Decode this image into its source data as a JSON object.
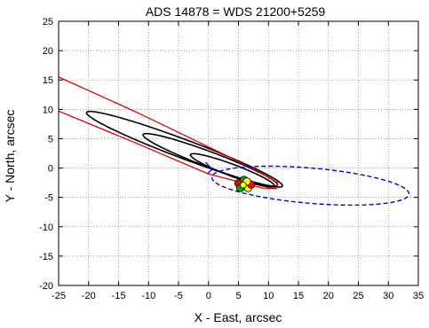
{
  "chart_data": {
    "type": "line",
    "title": "ADS 14878 = WDS 21200+5259",
    "xlabel": "X - East, arcsec",
    "ylabel": "Y - North, arcsec",
    "xlim": [
      -25,
      35
    ],
    "ylim": [
      -20,
      25
    ],
    "x_ticks": [
      -25,
      -20,
      -15,
      -10,
      -5,
      0,
      5,
      10,
      15,
      20,
      25,
      30,
      35
    ],
    "y_ticks": [
      -20,
      -15,
      -10,
      -5,
      0,
      5,
      10,
      15,
      20,
      25
    ],
    "grid": true,
    "legend": "none",
    "center_star": {
      "x": 5.8,
      "y": -2.9
    },
    "series": [
      {
        "style": "solid-black",
        "type": "ellipse",
        "center": [
          -4.0,
          3.2
        ],
        "semi_axes": [
          17.5,
          1.6
        ],
        "angle_deg": -21,
        "color": "#000000"
      },
      {
        "style": "solid-black",
        "type": "ellipse",
        "center": [
          0.3,
          1.4
        ],
        "semi_axes": [
          12.0,
          1.3
        ],
        "angle_deg": -21,
        "color": "#000000"
      },
      {
        "style": "solid-black",
        "type": "ellipse",
        "center": [
          4.0,
          -0.4
        ],
        "semi_axes": [
          7.5,
          1.0
        ],
        "angle_deg": -21,
        "color": "#000000"
      },
      {
        "style": "solid-red",
        "type": "polyline",
        "points": [
          [
            -25,
            15.5
          ],
          [
            -12,
            9.5
          ],
          [
            0,
            3.6
          ],
          [
            8,
            -0.4
          ],
          [
            11.5,
            -2.5
          ],
          [
            11.3,
            -3.5
          ],
          [
            9,
            -3.4
          ],
          [
            0,
            -1.0
          ],
          [
            -12,
            4.2
          ],
          [
            -25,
            9.7
          ]
        ],
        "color": "#e00000"
      },
      {
        "style": "dashed-blue",
        "type": "ellipse",
        "center": [
          17.0,
          -3.0
        ],
        "semi_axes": [
          16.5,
          3.0
        ],
        "angle_deg": -5,
        "color": "#0000dd"
      },
      {
        "style": "observation-markers",
        "type": "scatter",
        "points": [
          [
            5.0,
            -2.6
          ],
          [
            5.3,
            -3.4
          ],
          [
            6.6,
            -3.4
          ],
          [
            7.1,
            -2.8
          ],
          [
            5.9,
            -2.0
          ],
          [
            6.4,
            -2.3
          ]
        ],
        "colors": [
          "#ff0000",
          "#00aa00",
          "#ffff00",
          "#000000"
        ]
      }
    ]
  }
}
